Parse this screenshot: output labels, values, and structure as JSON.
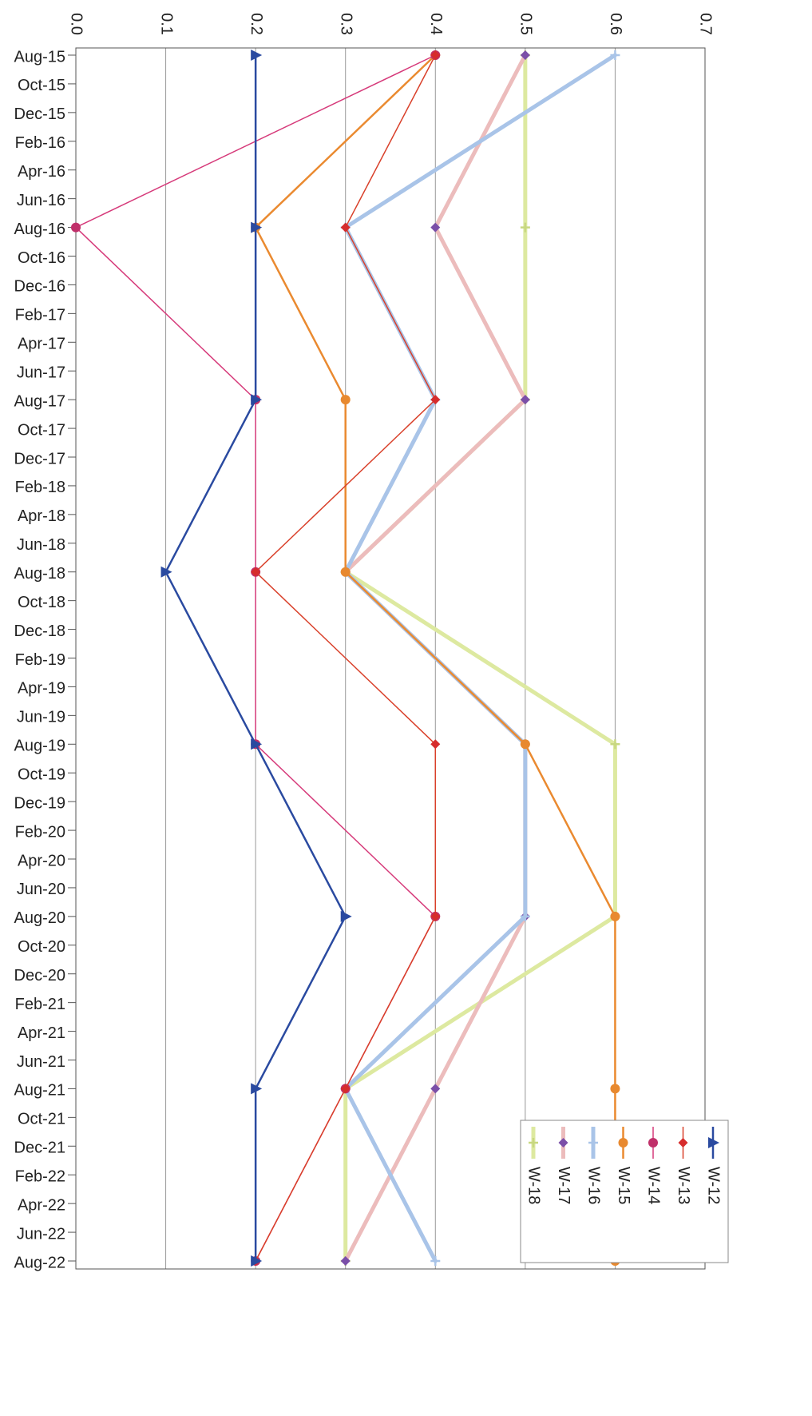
{
  "chart_data": {
    "type": "line",
    "orientation": "vertical",
    "connect_gaps": true,
    "grid": true,
    "categories": [
      "Aug-15",
      "Oct-15",
      "Dec-15",
      "Feb-16",
      "Apr-16",
      "Jun-16",
      "Aug-16",
      "Oct-16",
      "Dec-16",
      "Feb-17",
      "Apr-17",
      "Jun-17",
      "Aug-17",
      "Oct-17",
      "Dec-17",
      "Feb-18",
      "Apr-18",
      "Jun-18",
      "Aug-18",
      "Oct-18",
      "Dec-18",
      "Feb-19",
      "Apr-19",
      "Jun-19",
      "Aug-19",
      "Oct-19",
      "Dec-19",
      "Feb-20",
      "Apr-20",
      "Jun-20",
      "Aug-20",
      "Oct-20",
      "Dec-20",
      "Feb-21",
      "Apr-21",
      "Jun-21",
      "Aug-21",
      "Oct-21",
      "Dec-21",
      "Feb-22",
      "Apr-22",
      "Jun-22",
      "Aug-22"
    ],
    "ylim": [
      0,
      0.7
    ],
    "yticks": [
      {
        "value": 0,
        "label": "0.0"
      },
      0.1,
      0.2,
      0.3,
      0.4,
      0.5,
      0.6,
      0.7
    ],
    "series": [
      {
        "name": "W-12",
        "color": "#2a4aa0",
        "width": 2.5,
        "marker": "triangle",
        "marker_color": "#2a4aa0",
        "values": [
          0.2,
          null,
          null,
          null,
          null,
          null,
          0.2,
          null,
          null,
          null,
          null,
          null,
          0.2,
          null,
          null,
          null,
          null,
          null,
          0.1,
          null,
          null,
          null,
          null,
          null,
          0.2,
          null,
          null,
          null,
          null,
          null,
          0.3,
          null,
          null,
          null,
          null,
          null,
          0.2,
          null,
          null,
          null,
          null,
          null,
          0.2
        ]
      },
      {
        "name": "W-13",
        "color": "#d9402a",
        "width": 1.5,
        "marker": "diamond",
        "marker_color": "#d62c2c",
        "values": [
          0.4,
          null,
          null,
          null,
          null,
          null,
          0.3,
          null,
          null,
          null,
          null,
          null,
          0.4,
          null,
          null,
          null,
          null,
          null,
          0.2,
          null,
          null,
          null,
          null,
          null,
          0.4,
          null,
          null,
          null,
          null,
          null,
          0.4,
          null,
          null,
          null,
          null,
          null,
          0.3,
          null,
          null,
          null,
          null,
          null,
          0.2
        ]
      },
      {
        "name": "W-14",
        "color": "#d63a7a",
        "width": 1.5,
        "marker": "circle",
        "marker_color": "#c0306a",
        "values": [
          0.4,
          null,
          null,
          null,
          null,
          null,
          0.0,
          null,
          null,
          null,
          null,
          null,
          0.2,
          null,
          null,
          null,
          null,
          null,
          0.2,
          null,
          null,
          null,
          null,
          null,
          0.2,
          null,
          null,
          null,
          null,
          null,
          0.4,
          null,
          null,
          null,
          null,
          null,
          0.3,
          null,
          null,
          null,
          null,
          null,
          0.2
        ]
      },
      {
        "name": "W-15",
        "color": "#ea8a30",
        "width": 2.5,
        "marker": "circle",
        "marker_color": "#e8892f",
        "values": [
          0.4,
          null,
          null,
          null,
          null,
          null,
          0.2,
          null,
          null,
          null,
          null,
          null,
          0.3,
          null,
          null,
          null,
          null,
          null,
          0.3,
          null,
          null,
          null,
          null,
          null,
          0.5,
          null,
          null,
          null,
          null,
          null,
          0.6,
          null,
          null,
          null,
          null,
          null,
          0.6,
          null,
          null,
          null,
          null,
          null,
          0.6
        ]
      },
      {
        "name": "W-16",
        "color": "#a9c4e8",
        "width": 5,
        "marker": "plus",
        "marker_color": "#a9c4e8",
        "values": [
          0.6,
          null,
          null,
          null,
          null,
          null,
          0.3,
          null,
          null,
          null,
          null,
          null,
          0.4,
          null,
          null,
          null,
          null,
          null,
          0.3,
          null,
          null,
          null,
          null,
          null,
          0.5,
          null,
          null,
          null,
          null,
          null,
          0.5,
          null,
          null,
          null,
          null,
          null,
          0.3,
          null,
          null,
          null,
          null,
          null,
          0.4
        ]
      },
      {
        "name": "W-17",
        "color": "#ecbcbc",
        "width": 5,
        "marker": "diamond",
        "marker_color": "#7b4fa8",
        "values": [
          0.5,
          null,
          null,
          null,
          null,
          null,
          0.4,
          null,
          null,
          null,
          null,
          null,
          0.5,
          null,
          null,
          null,
          null,
          null,
          0.3,
          null,
          null,
          null,
          null,
          null,
          0.5,
          null,
          null,
          null,
          null,
          null,
          0.5,
          null,
          null,
          null,
          null,
          null,
          0.4,
          null,
          null,
          null,
          null,
          null,
          0.3
        ]
      },
      {
        "name": "W-18",
        "color": "#dde9a0",
        "width": 5,
        "marker": "plus",
        "marker_color": "#c8d880",
        "values": [
          0.5,
          null,
          null,
          null,
          null,
          null,
          0.5,
          null,
          null,
          null,
          null,
          null,
          0.5,
          null,
          null,
          null,
          null,
          null,
          0.3,
          null,
          null,
          null,
          null,
          null,
          0.6,
          null,
          null,
          null,
          null,
          null,
          0.6,
          null,
          null,
          null,
          null,
          null,
          0.3,
          null,
          null,
          null,
          null,
          null,
          0.3
        ]
      }
    ]
  }
}
